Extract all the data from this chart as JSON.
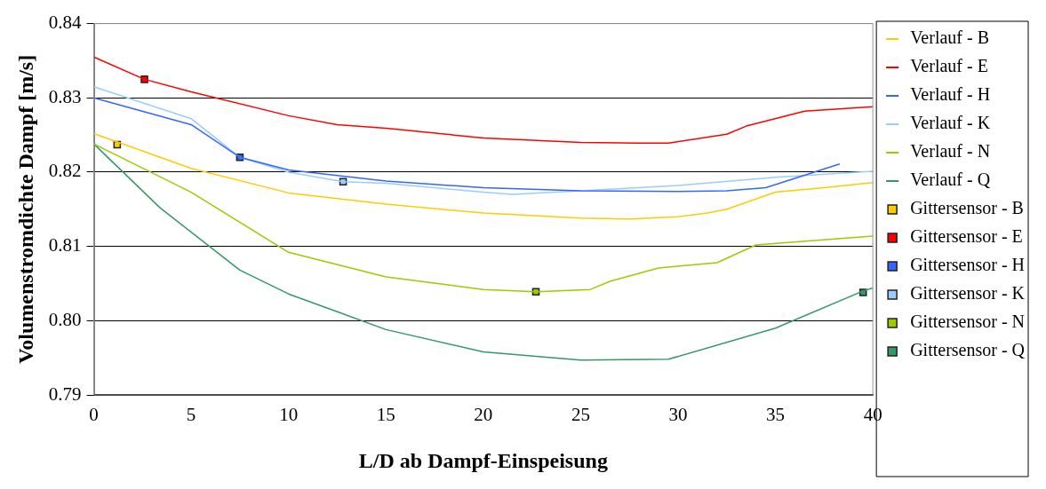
{
  "chart_data": {
    "type": "line",
    "xlabel": "L/D ab Dampf-Einspeisung",
    "ylabel": "Volumenstromdichte Dampf [m/s]",
    "xlim": [
      0,
      40
    ],
    "xticks": [
      0,
      5,
      10,
      15,
      20,
      25,
      30,
      35,
      40
    ],
    "ylim": [
      0.79,
      0.84
    ],
    "yticks": [
      0.79,
      {
        "value": 0.8,
        "label": "0.80"
      },
      0.81,
      0.82,
      0.83,
      0.84
    ],
    "grid": "y",
    "legend": "right",
    "line_style": "solid",
    "series": [
      {
        "name": "Verlauf - B",
        "color": "#ffcc00",
        "marker": "none",
        "x": [
          0,
          5,
          10,
          15,
          20,
          25,
          27.5,
          30,
          31.5,
          32.5,
          35,
          37.5,
          40
        ],
        "values": [
          0.8252,
          0.8205,
          0.8172,
          0.8157,
          0.8145,
          0.8138,
          0.8137,
          0.814,
          0.8145,
          0.815,
          0.8173,
          0.8179,
          0.8186
        ]
      },
      {
        "name": "Verlauf - E",
        "color": "#ff0000",
        "marker": "none",
        "x": [
          0,
          2.6,
          5,
          10,
          12.5,
          15,
          20,
          25,
          28,
          29.5,
          32.5,
          33.5,
          36.5,
          40
        ],
        "values": [
          0.8355,
          0.8325,
          0.8308,
          0.8276,
          0.8264,
          0.8259,
          0.8246,
          0.824,
          0.8239,
          0.8239,
          0.8251,
          0.8262,
          0.8282,
          0.8288
        ]
      },
      {
        "name": "Verlauf - H",
        "color": "#3366ff",
        "marker": "none",
        "x": [
          0,
          5,
          7.5,
          10,
          15,
          20,
          25,
          30,
          32.5,
          34.5,
          38.3
        ],
        "values": [
          0.83,
          0.8264,
          0.822,
          0.8203,
          0.8188,
          0.8179,
          0.8175,
          0.8174,
          0.8175,
          0.8179,
          0.8211
        ]
      },
      {
        "name": "Verlauf - K",
        "color": "#99ccff",
        "marker": "none",
        "x": [
          0,
          5,
          7.5,
          10,
          12.8,
          15,
          20,
          21.5,
          25,
          30,
          35,
          40
        ],
        "values": [
          0.8315,
          0.8272,
          0.822,
          0.82,
          0.8187,
          0.8185,
          0.8173,
          0.817,
          0.8175,
          0.8182,
          0.8193,
          0.8201
        ]
      },
      {
        "name": "Verlauf - N",
        "color": "#99cc00",
        "marker": "none",
        "x": [
          0,
          5,
          10,
          15,
          20,
          22.7,
          25.5,
          26.5,
          29,
          32,
          34,
          40
        ],
        "values": [
          0.8238,
          0.8173,
          0.8092,
          0.8059,
          0.8042,
          0.8039,
          0.8042,
          0.8053,
          0.8071,
          0.8078,
          0.8102,
          0.8114
        ]
      },
      {
        "name": "Verlauf - Q",
        "color": "#339966",
        "marker": "none",
        "x": [
          0,
          3.4,
          7.5,
          10,
          12.5,
          15,
          20,
          25,
          29.5,
          35,
          39.5,
          40
        ],
        "values": [
          0.8238,
          0.8152,
          0.8068,
          0.8036,
          0.8012,
          0.7988,
          0.7958,
          0.7947,
          0.7948,
          0.799,
          0.804,
          0.8044
        ]
      },
      {
        "name": "Gittersensor - B",
        "color": "#ffcc00",
        "type": "scatter",
        "marker": "square",
        "x": [
          1.2
        ],
        "values": [
          0.8237
        ]
      },
      {
        "name": "Gittersensor - E",
        "color": "#ff0000",
        "type": "scatter",
        "marker": "square",
        "x": [
          2.6
        ],
        "values": [
          0.8325
        ]
      },
      {
        "name": "Gittersensor - H",
        "color": "#3366ff",
        "type": "scatter",
        "marker": "square",
        "x": [
          7.5
        ],
        "values": [
          0.822
        ]
      },
      {
        "name": "Gittersensor - K",
        "color": "#99ccff",
        "type": "scatter",
        "marker": "square",
        "x": [
          12.8
        ],
        "values": [
          0.8187
        ]
      },
      {
        "name": "Gittersensor - N",
        "color": "#99cc00",
        "type": "scatter",
        "marker": "square",
        "x": [
          22.7
        ],
        "values": [
          0.8039
        ]
      },
      {
        "name": "Gittersensor - Q",
        "color": "#339966",
        "type": "scatter",
        "marker": "square",
        "x": [
          39.5
        ],
        "values": [
          0.8038
        ]
      }
    ]
  }
}
